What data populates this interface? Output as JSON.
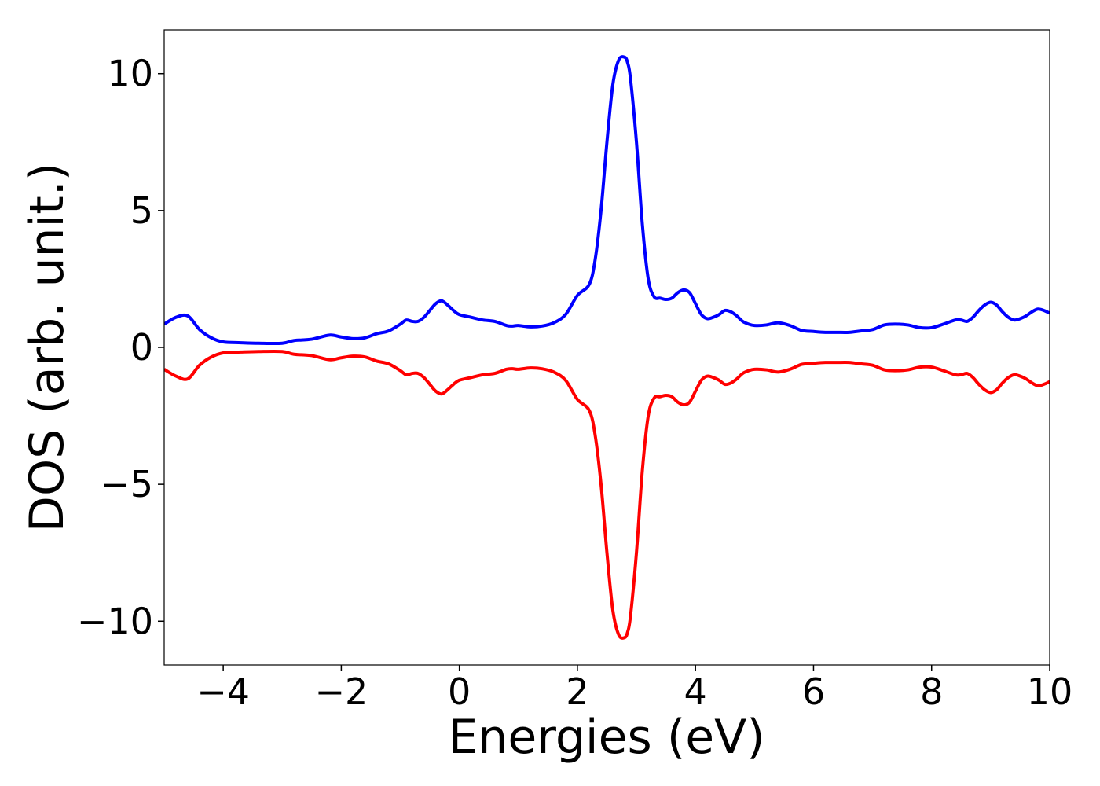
{
  "chart_data": {
    "type": "line",
    "title": "",
    "xlabel": "Energies (eV)",
    "ylabel": "DOS (arb. unit.)",
    "xlim": [
      -5,
      10
    ],
    "ylim": [
      -11.6,
      11.6
    ],
    "xticks": [
      -4,
      -2,
      0,
      2,
      4,
      6,
      8,
      10
    ],
    "xtick_labels": [
      "−4",
      "−2",
      "0",
      "2",
      "4",
      "6",
      "8",
      "10"
    ],
    "yticks": [
      -10,
      -5,
      0,
      5,
      10
    ],
    "ytick_labels": [
      "−10",
      "−5",
      "0",
      "5",
      "10"
    ],
    "grid": false,
    "legend": "none",
    "series": [
      {
        "color": "#0000ff",
        "x": [
          -5.0,
          -4.8,
          -4.6,
          -4.4,
          -4.2,
          -4.0,
          -3.7,
          -3.4,
          -3.0,
          -2.8,
          -2.5,
          -2.2,
          -2.0,
          -1.8,
          -1.6,
          -1.4,
          -1.2,
          -1.0,
          -0.9,
          -0.8,
          -0.7,
          -0.6,
          -0.5,
          -0.4,
          -0.3,
          -0.2,
          -0.1,
          0.0,
          0.2,
          0.4,
          0.6,
          0.8,
          0.9,
          1.0,
          1.2,
          1.4,
          1.6,
          1.8,
          2.0,
          2.2,
          2.3,
          2.4,
          2.5,
          2.6,
          2.7,
          2.8,
          2.85,
          2.9,
          3.0,
          3.1,
          3.2,
          3.3,
          3.4,
          3.5,
          3.6,
          3.7,
          3.8,
          3.9,
          4.0,
          4.1,
          4.2,
          4.3,
          4.4,
          4.5,
          4.6,
          4.7,
          4.8,
          4.9,
          5.0,
          5.2,
          5.4,
          5.6,
          5.8,
          6.0,
          6.2,
          6.4,
          6.6,
          6.8,
          7.0,
          7.2,
          7.4,
          7.6,
          7.8,
          8.0,
          8.2,
          8.4,
          8.5,
          8.6,
          8.7,
          8.8,
          8.9,
          9.0,
          9.1,
          9.2,
          9.3,
          9.4,
          9.5,
          9.6,
          9.7,
          9.8,
          9.9,
          10.0
        ],
        "values": [
          0.85,
          1.1,
          1.15,
          0.65,
          0.35,
          0.2,
          0.17,
          0.15,
          0.15,
          0.25,
          0.3,
          0.45,
          0.38,
          0.32,
          0.35,
          0.5,
          0.6,
          0.85,
          1.0,
          0.95,
          0.95,
          1.1,
          1.35,
          1.6,
          1.7,
          1.55,
          1.35,
          1.2,
          1.1,
          1.0,
          0.95,
          0.8,
          0.78,
          0.8,
          0.75,
          0.78,
          0.9,
          1.2,
          1.9,
          2.3,
          3.2,
          5.0,
          7.5,
          9.6,
          10.5,
          10.6,
          10.4,
          9.8,
          7.5,
          4.5,
          2.5,
          1.85,
          1.8,
          1.75,
          1.8,
          2.0,
          2.1,
          2.0,
          1.6,
          1.2,
          1.05,
          1.1,
          1.2,
          1.35,
          1.3,
          1.15,
          0.95,
          0.85,
          0.8,
          0.82,
          0.9,
          0.8,
          0.62,
          0.58,
          0.55,
          0.55,
          0.55,
          0.6,
          0.65,
          0.82,
          0.85,
          0.82,
          0.72,
          0.72,
          0.85,
          1.0,
          1.0,
          0.95,
          1.1,
          1.35,
          1.55,
          1.65,
          1.55,
          1.3,
          1.1,
          1.0,
          1.05,
          1.15,
          1.3,
          1.4,
          1.35,
          1.25
        ]
      },
      {
        "color": "#ff0000",
        "x": [
          -5.0,
          -4.8,
          -4.6,
          -4.4,
          -4.2,
          -4.0,
          -3.7,
          -3.4,
          -3.0,
          -2.8,
          -2.5,
          -2.2,
          -2.0,
          -1.8,
          -1.6,
          -1.4,
          -1.2,
          -1.0,
          -0.9,
          -0.8,
          -0.7,
          -0.6,
          -0.5,
          -0.4,
          -0.3,
          -0.2,
          -0.1,
          0.0,
          0.2,
          0.4,
          0.6,
          0.8,
          0.9,
          1.0,
          1.2,
          1.4,
          1.6,
          1.8,
          2.0,
          2.2,
          2.3,
          2.4,
          2.5,
          2.6,
          2.7,
          2.8,
          2.85,
          2.9,
          3.0,
          3.1,
          3.2,
          3.3,
          3.4,
          3.5,
          3.6,
          3.7,
          3.8,
          3.9,
          4.0,
          4.1,
          4.2,
          4.3,
          4.4,
          4.5,
          4.6,
          4.7,
          4.8,
          4.9,
          5.0,
          5.2,
          5.4,
          5.6,
          5.8,
          6.0,
          6.2,
          6.4,
          6.6,
          6.8,
          7.0,
          7.2,
          7.4,
          7.6,
          7.8,
          8.0,
          8.2,
          8.4,
          8.5,
          8.6,
          8.7,
          8.8,
          8.9,
          9.0,
          9.1,
          9.2,
          9.3,
          9.4,
          9.5,
          9.6,
          9.7,
          9.8,
          9.9,
          10.0
        ],
        "values": [
          -0.8,
          -1.05,
          -1.15,
          -0.65,
          -0.35,
          -0.2,
          -0.17,
          -0.15,
          -0.15,
          -0.25,
          -0.3,
          -0.45,
          -0.38,
          -0.32,
          -0.35,
          -0.5,
          -0.6,
          -0.85,
          -1.0,
          -0.95,
          -0.95,
          -1.1,
          -1.35,
          -1.6,
          -1.7,
          -1.55,
          -1.35,
          -1.2,
          -1.1,
          -1.0,
          -0.95,
          -0.8,
          -0.78,
          -0.8,
          -0.75,
          -0.78,
          -0.9,
          -1.2,
          -1.9,
          -2.3,
          -3.2,
          -5.0,
          -7.5,
          -9.6,
          -10.5,
          -10.6,
          -10.4,
          -9.8,
          -7.5,
          -4.5,
          -2.5,
          -1.85,
          -1.8,
          -1.75,
          -1.8,
          -2.0,
          -2.1,
          -2.0,
          -1.6,
          -1.2,
          -1.05,
          -1.1,
          -1.2,
          -1.35,
          -1.3,
          -1.15,
          -0.95,
          -0.85,
          -0.8,
          -0.82,
          -0.9,
          -0.8,
          -0.62,
          -0.58,
          -0.55,
          -0.55,
          -0.55,
          -0.6,
          -0.65,
          -0.82,
          -0.85,
          -0.82,
          -0.72,
          -0.72,
          -0.85,
          -1.0,
          -1.0,
          -0.95,
          -1.1,
          -1.35,
          -1.55,
          -1.65,
          -1.55,
          -1.3,
          -1.1,
          -1.0,
          -1.05,
          -1.15,
          -1.3,
          -1.4,
          -1.35,
          -1.25
        ]
      }
    ]
  }
}
